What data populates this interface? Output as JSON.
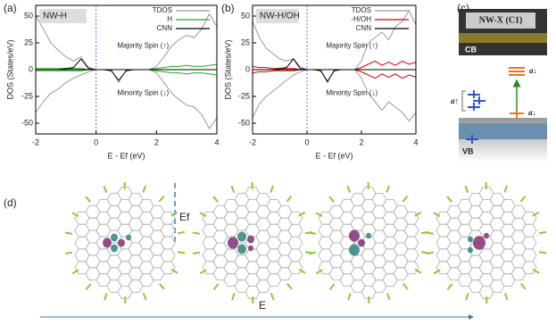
{
  "chart_data": [
    {
      "type": "line",
      "panel_label": "(a)",
      "label": "NW-H",
      "xlabel": "E - Ef (eV)",
      "ylabel": "DOS (States/eV)",
      "annotations": [
        "Majority Spin (↑)",
        "Minority Spin (↓)"
      ],
      "x": [
        -2,
        -1.75,
        -1.5,
        -1.25,
        -1,
        -0.75,
        -0.5,
        -0.25,
        0,
        0.25,
        0.5,
        0.75,
        1,
        1.25,
        1.5,
        1.75,
        2,
        2.25,
        2.5,
        2.75,
        3,
        3.25,
        3.5,
        3.75,
        4
      ],
      "xlim": [
        -2,
        4
      ],
      "xticks": [
        -2,
        0,
        2,
        4
      ],
      "ylim": [
        -60,
        60
      ],
      "yticks": [
        -50,
        -25,
        0,
        25,
        50
      ],
      "series": [
        {
          "name": "TDOS",
          "color": "#999999",
          "spin_up": [
            50,
            38,
            25,
            18,
            12,
            8,
            12,
            2,
            0,
            0,
            0,
            0,
            0,
            0,
            0,
            0,
            3,
            12,
            22,
            28,
            32,
            30,
            38,
            52,
            40
          ],
          "spin_down": [
            -40,
            -30,
            -22,
            -18,
            -12,
            -8,
            -5,
            -2,
            0,
            0,
            0,
            -12,
            0,
            0,
            0,
            0,
            -3,
            -12,
            -22,
            -28,
            -33,
            -35,
            -42,
            -55,
            -45
          ]
        },
        {
          "name": "H",
          "color": "#22aa22",
          "spin_up": [
            1,
            1,
            1,
            1,
            1,
            1,
            1,
            0,
            0,
            0,
            0,
            0,
            0,
            0,
            0,
            0,
            1,
            2,
            3,
            3,
            4,
            3,
            3,
            4,
            5
          ],
          "spin_down": [
            -1,
            -1,
            -1,
            -1,
            -1,
            -1,
            -1,
            0,
            0,
            0,
            0,
            0,
            0,
            0,
            0,
            0,
            -1,
            -2,
            -3,
            -3,
            -4,
            -3,
            -3,
            -4,
            -5
          ]
        },
        {
          "name": "CNN",
          "color": "#000000",
          "spin_up": [
            0,
            0,
            0,
            0,
            1,
            2,
            10,
            1,
            0,
            0,
            0,
            0,
            0,
            0,
            0,
            0,
            0,
            0,
            0,
            0,
            0,
            0,
            0,
            0,
            0
          ],
          "spin_down": [
            0,
            0,
            0,
            0,
            0,
            0,
            0,
            0,
            0,
            0,
            -1,
            -10,
            -1,
            0,
            0,
            0,
            0,
            0,
            0,
            0,
            0,
            0,
            0,
            0,
            0
          ]
        }
      ]
    },
    {
      "type": "line",
      "panel_label": "(b)",
      "label": "NW-H/OH",
      "xlabel": "E - Ef (eV)",
      "ylabel": "DOS (States/eV)",
      "annotations": [
        "Majority Spin (↑)",
        "Minority Spin (↓)"
      ],
      "x": [
        -2,
        -1.75,
        -1.5,
        -1.25,
        -1,
        -0.75,
        -0.5,
        -0.25,
        0,
        0.25,
        0.5,
        0.75,
        1,
        1.25,
        1.5,
        1.75,
        2,
        2.25,
        2.5,
        2.75,
        3,
        3.25,
        3.5,
        3.75,
        4
      ],
      "xlim": [
        -2,
        4
      ],
      "xticks": [
        -2,
        0,
        2,
        4
      ],
      "ylim": [
        -60,
        60
      ],
      "yticks": [
        -50,
        -25,
        0,
        25,
        50
      ],
      "series": [
        {
          "name": "TDOS",
          "color": "#999999",
          "spin_up": [
            45,
            30,
            20,
            15,
            10,
            8,
            10,
            3,
            0,
            0,
            0,
            0,
            0,
            0,
            0,
            0,
            8,
            25,
            30,
            35,
            28,
            40,
            45,
            55,
            42
          ],
          "spin_down": [
            -45,
            -32,
            -25,
            -20,
            -15,
            -10,
            -5,
            -2,
            0,
            0,
            0,
            -12,
            0,
            0,
            0,
            0,
            -8,
            -22,
            -30,
            -38,
            -30,
            -35,
            -40,
            -48,
            -40
          ]
        },
        {
          "name": "-H/OH",
          "color": "#dd0000",
          "spin_up": [
            3,
            2,
            2,
            1,
            1,
            1,
            1,
            0,
            0,
            0,
            0,
            0,
            0,
            0,
            0,
            0,
            2,
            5,
            8,
            4,
            7,
            4,
            8,
            5,
            7
          ],
          "spin_down": [
            -3,
            -2,
            -2,
            -1,
            -1,
            -1,
            -1,
            0,
            0,
            0,
            0,
            0,
            0,
            0,
            0,
            0,
            -2,
            -5,
            -8,
            -4,
            -7,
            -4,
            -8,
            -5,
            -7
          ]
        },
        {
          "name": "CNN",
          "color": "#000000",
          "spin_up": [
            0,
            0,
            0,
            0,
            1,
            2,
            10,
            1,
            0,
            0,
            0,
            0,
            0,
            0,
            0,
            0,
            0,
            0,
            0,
            0,
            0,
            0,
            0,
            0,
            0
          ],
          "spin_down": [
            0,
            0,
            0,
            0,
            0,
            0,
            0,
            0,
            0,
            0,
            -1,
            -11,
            -1,
            0,
            0,
            0,
            0,
            0,
            0,
            0,
            0,
            0,
            0,
            0,
            0
          ]
        }
      ]
    }
  ],
  "panel_c": {
    "panel_label": "(c)",
    "title": "NW-X (C1)",
    "cb": "CB",
    "vb": "VB",
    "a_up": "a↑",
    "a_down_top": "a↓",
    "a_down_mid": "a↓"
  },
  "panel_d": {
    "panel_label": "(d)",
    "ef": "Ef",
    "e": "E"
  }
}
